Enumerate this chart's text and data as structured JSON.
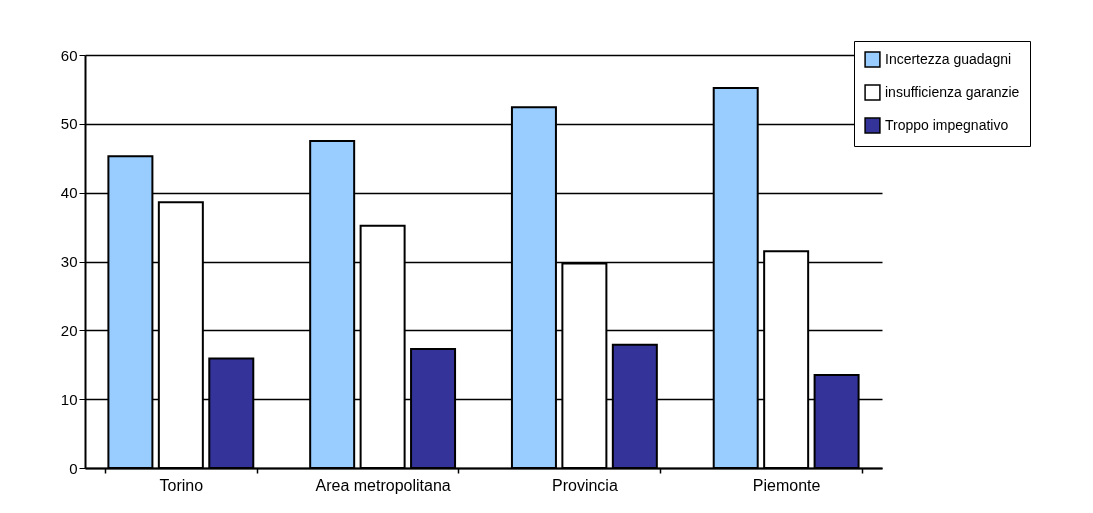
{
  "chart_data": {
    "type": "bar",
    "categories": [
      "Torino",
      "Area metropolitana",
      "Provincia",
      "Piemonte"
    ],
    "series": [
      {
        "name": "Incertezza guadagni",
        "color": "#99ccff",
        "values": [
          45.3,
          47.5,
          52.4,
          55.2
        ]
      },
      {
        "name": "insufficienza garanzie",
        "color": "#ffffff",
        "values": [
          38.6,
          35.2,
          29.7,
          31.5
        ]
      },
      {
        "name": "Troppo impegnativo",
        "color": "#333399",
        "values": [
          15.9,
          17.3,
          17.9,
          13.5
        ]
      }
    ],
    "ylim": [
      0,
      60
    ],
    "yticks": [
      0,
      10,
      20,
      30,
      40,
      50,
      60
    ],
    "grid": "y",
    "legend": "top right"
  }
}
